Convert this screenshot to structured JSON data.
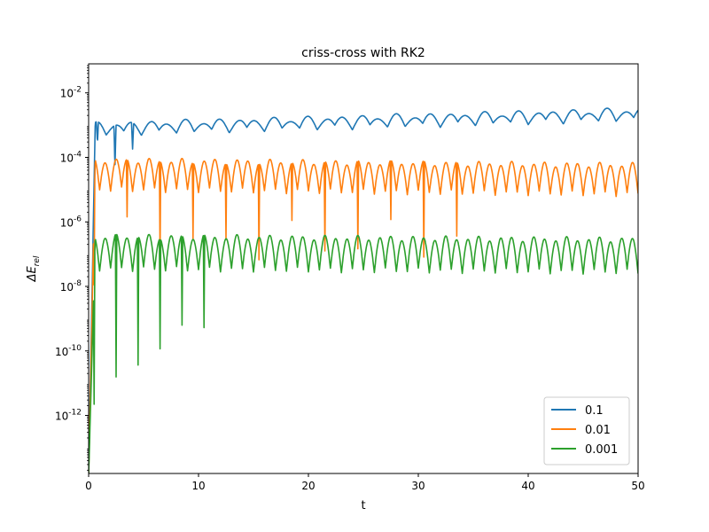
{
  "chart_data": {
    "type": "line",
    "title": "criss-cross with RK2",
    "xlabel": "t",
    "ylabel_base": "ΔE",
    "ylabel_sub": "rel",
    "xlim": [
      0,
      50
    ],
    "ylim_log10": [
      -13.8,
      -1.1
    ],
    "yscale": "log",
    "x_ticks": [
      0,
      10,
      20,
      30,
      40,
      50
    ],
    "y_ticks_exp": [
      -12,
      -10,
      -8,
      -6,
      -4,
      -2
    ],
    "legend": {
      "position": "lower-right"
    },
    "series": [
      {
        "name": "0.1",
        "color": "#1f77b4",
        "model": {
          "c0": -3.1,
          "c1": 0.009,
          "jitter": 0.9,
          "period": 1.6,
          "env_amp": 1.2,
          "amp_decay": 0.06,
          "osc_amp": 0.3,
          "osc_growth": 0.0,
          "spike_depth": 1.3,
          "spike_every": 1,
          "spike_until": 4.5
        }
      },
      {
        "name": "0.01",
        "color": "#ff7f0e",
        "model": {
          "c0": -4.45,
          "c1": -0.003,
          "jitter": 0.8,
          "period": 1.0,
          "env_amp": 1.1,
          "amp_decay": 0.05,
          "osc_amp": 0.9,
          "osc_growth": 0.0,
          "spike_depth": 3.0,
          "spike_every": 3,
          "spike_until": 35.5
        }
      },
      {
        "name": "0.001",
        "color": "#2ca02c",
        "model": {
          "c0": -6.85,
          "c1": -0.002,
          "jitter": 0.8,
          "period": 1.0,
          "env_amp": 1.1,
          "amp_decay": 0.05,
          "osc_amp": 1.0,
          "osc_growth": 0.0,
          "spike_depth": 5.0,
          "spike_every": 2,
          "spike_until": 12.0
        }
      }
    ]
  }
}
